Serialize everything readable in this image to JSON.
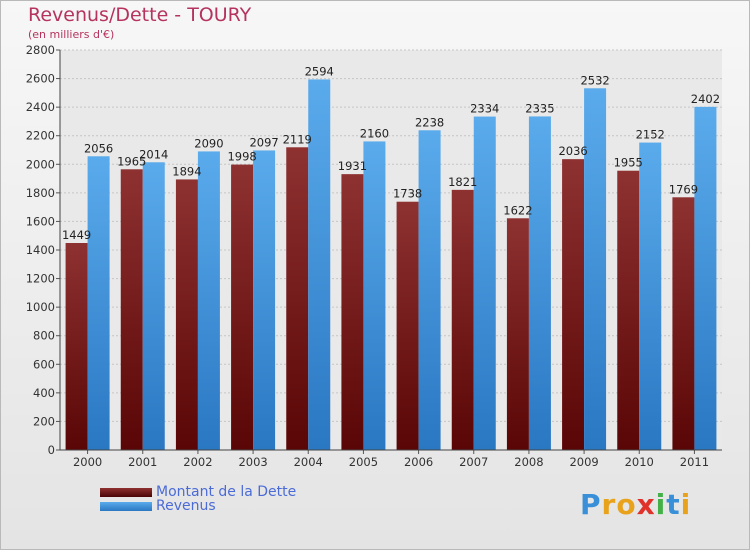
{
  "header": {
    "title": "Revenus/Dette - TOURY",
    "subtitle": "(en milliers d'€)"
  },
  "logo": {
    "text": "Proxiti"
  },
  "colors": {
    "debt": "#7a1c1c",
    "revenue": "#3a8fd9",
    "title": "#b5335d"
  },
  "chart_data": {
    "type": "bar",
    "title": "Revenus/Dette - TOURY",
    "subtitle": "(en milliers d'€)",
    "categories": [
      "2000",
      "2001",
      "2002",
      "2003",
      "2004",
      "2005",
      "2006",
      "2007",
      "2008",
      "2009",
      "2010",
      "2011"
    ],
    "series": [
      {
        "name": "Montant de la Dette",
        "values": [
          1449,
          1965,
          1894,
          1998,
          2119,
          1931,
          1738,
          1821,
          1622,
          2036,
          1955,
          1769
        ]
      },
      {
        "name": "Revenus",
        "values": [
          2056,
          2014,
          2090,
          2097,
          2594,
          2160,
          2238,
          2334,
          2335,
          2532,
          2152,
          2402
        ]
      }
    ],
    "ylim": [
      0,
      2800
    ],
    "yticks": [
      0,
      200,
      400,
      600,
      800,
      1000,
      1200,
      1400,
      1600,
      1800,
      2000,
      2200,
      2400,
      2600,
      2800
    ],
    "grid": true,
    "legend_position": "bottom-left"
  }
}
